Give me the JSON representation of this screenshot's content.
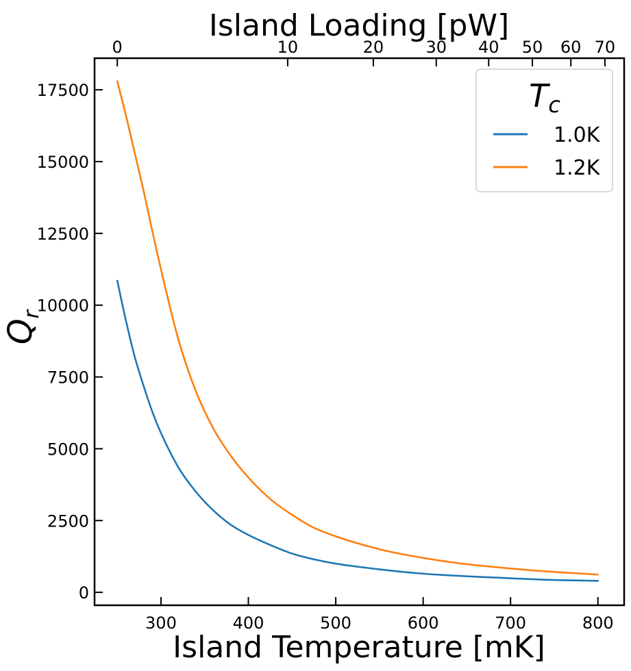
{
  "chart_data": {
    "type": "line",
    "title": "",
    "xlabel": "Island Temperature [mK]",
    "ylabel": {
      "main": "Q",
      "sub": "r"
    },
    "top_xlabel": "Island Loading [pW]",
    "xlim": [
      224,
      830
    ],
    "ylim": [
      -450,
      18600
    ],
    "xticks": [
      300,
      400,
      500,
      600,
      700,
      800
    ],
    "xtick_labels": [
      "300",
      "400",
      "500",
      "600",
      "700",
      "800"
    ],
    "yticks": [
      0,
      2500,
      5000,
      7500,
      10000,
      12500,
      15000,
      17500
    ],
    "ytick_labels": [
      "0",
      "2500",
      "5000",
      "7500",
      "10000",
      "12500",
      "15000",
      "17500"
    ],
    "top_ticks": [
      {
        "label": "0",
        "at_temperature_mK": 250
      },
      {
        "label": "10",
        "at_temperature_mK": 445
      },
      {
        "label": "20",
        "at_temperature_mK": 543
      },
      {
        "label": "30",
        "at_temperature_mK": 615
      },
      {
        "label": "40",
        "at_temperature_mK": 675
      },
      {
        "label": "50",
        "at_temperature_mK": 725
      },
      {
        "label": "60",
        "at_temperature_mK": 769
      },
      {
        "label": "70",
        "at_temperature_mK": 808
      }
    ],
    "grid": false,
    "legend": {
      "title_main": "T",
      "title_sub": "c",
      "position": "top-right"
    },
    "series": [
      {
        "name": "1.0K",
        "color": "#1f77b4",
        "x": [
          250,
          260,
          270,
          280,
          290,
          300,
          320,
          340,
          360,
          380,
          400,
          425,
          450,
          475,
          500,
          550,
          600,
          650,
          700,
          750,
          800
        ],
        "y": [
          10850,
          9450,
          8200,
          7200,
          6300,
          5550,
          4350,
          3500,
          2850,
          2350,
          2000,
          1650,
          1350,
          1150,
          1000,
          800,
          650,
          560,
          490,
          430,
          400
        ]
      },
      {
        "name": "1.2K",
        "color": "#ff7f0e",
        "x": [
          250,
          260,
          270,
          280,
          290,
          300,
          320,
          340,
          360,
          380,
          400,
          425,
          450,
          475,
          500,
          550,
          600,
          650,
          700,
          750,
          800
        ],
        "y": [
          17800,
          16600,
          15300,
          14000,
          12600,
          11250,
          8800,
          7000,
          5700,
          4750,
          4000,
          3250,
          2700,
          2250,
          1950,
          1500,
          1200,
          980,
          830,
          710,
          620
        ]
      }
    ]
  }
}
